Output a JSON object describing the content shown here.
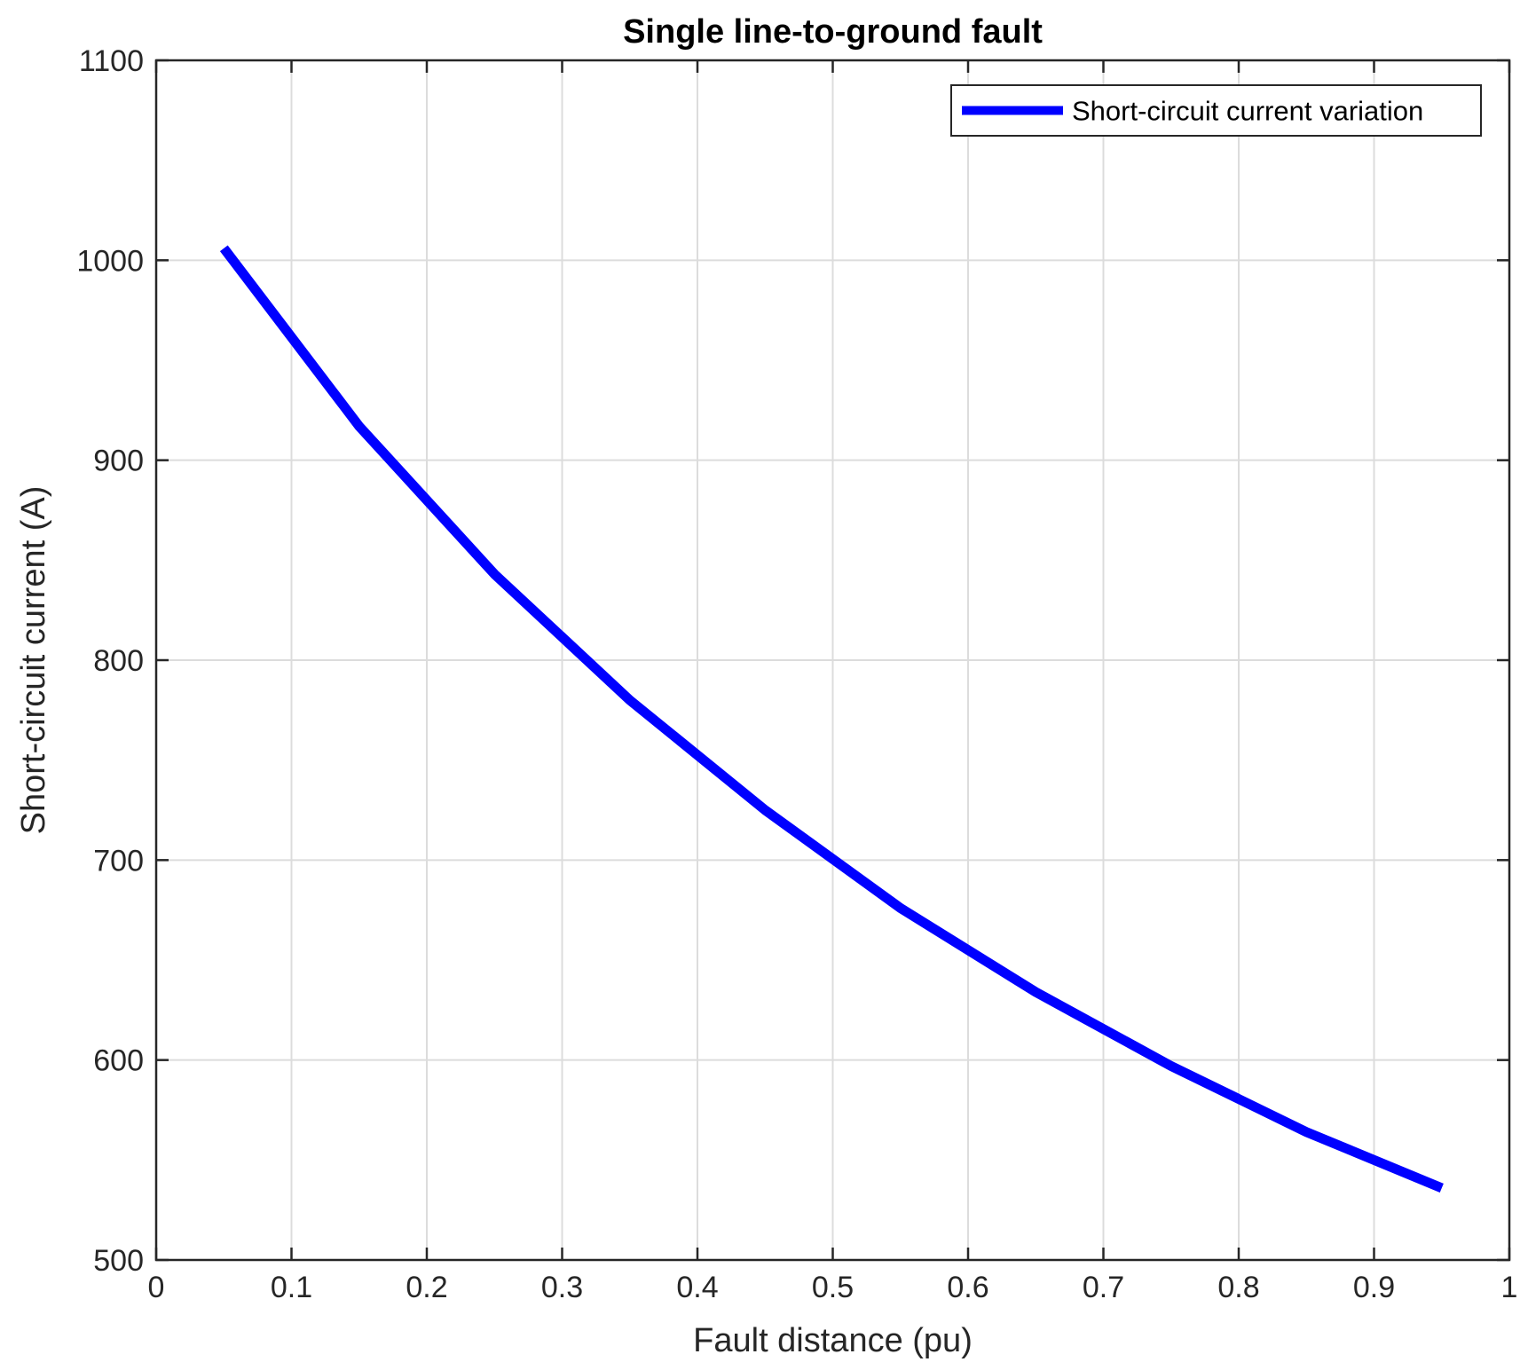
{
  "chart_data": {
    "type": "line",
    "title": "Single line-to-ground fault",
    "xlabel": "Fault distance (pu)",
    "ylabel": "Short-circuit current (A)",
    "xlim": [
      0,
      1
    ],
    "ylim": [
      500,
      1100
    ],
    "xticks": [
      0,
      0.1,
      0.2,
      0.3,
      0.4,
      0.5,
      0.6,
      0.7,
      0.8,
      0.9,
      1
    ],
    "xtick_labels": [
      "0",
      "0.1",
      "0.2",
      "0.3",
      "0.4",
      "0.5",
      "0.6",
      "0.7",
      "0.8",
      "0.9",
      "1"
    ],
    "yticks": [
      500,
      600,
      700,
      800,
      900,
      1000,
      1100
    ],
    "ytick_labels": [
      "500",
      "600",
      "700",
      "800",
      "900",
      "1000",
      "1100"
    ],
    "grid": true,
    "legend_position": "top-right",
    "series": [
      {
        "name": "Short-circuit current variation",
        "color": "#0000ff",
        "x": [
          0.05,
          0.15,
          0.25,
          0.35,
          0.45,
          0.55,
          0.65,
          0.75,
          0.85,
          0.95
        ],
        "y": [
          1006,
          917,
          843,
          780,
          725,
          676,
          634,
          597,
          564,
          536
        ]
      }
    ]
  }
}
